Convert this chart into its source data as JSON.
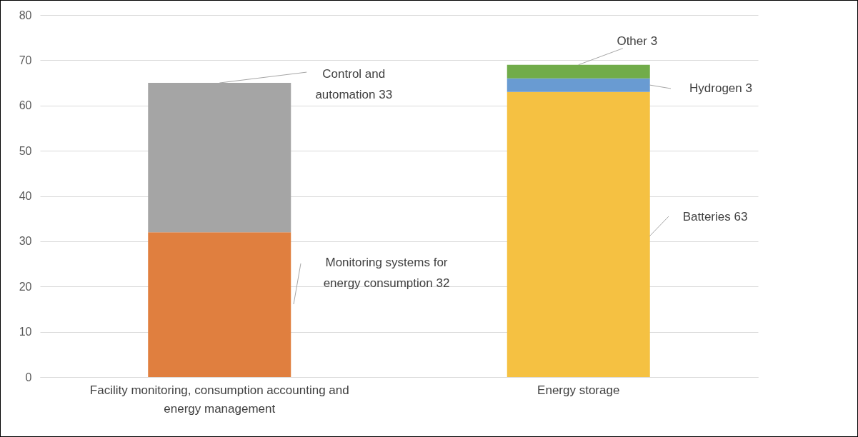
{
  "chart_data": {
    "type": "bar",
    "stacked": true,
    "categories": [
      "Facility monitoring, consumption accounting and energy management",
      "Energy storage"
    ],
    "series": [
      {
        "color": "#e07f3f",
        "values": [
          32,
          null
        ]
      },
      {
        "color": "#a5a5a5",
        "values": [
          33,
          null
        ]
      },
      {
        "color": "#f5c142",
        "values": [
          null,
          63
        ]
      },
      {
        "color": "#699bd2",
        "values": [
          null,
          3
        ]
      },
      {
        "color": "#71ac4a",
        "values": [
          null,
          3
        ]
      }
    ],
    "annotations": [
      "Monitoring systems for energy consumption 32",
      {
        "text": "Control and automation 33",
        "x": "Facility monitoring, consumption accounting and energy management",
        "y": 65
      },
      "Batteries 63",
      "Hydrogen 3",
      {
        "text": "Other 3",
        "x": "Energy storage",
        "y": 69
      }
    ],
    "ylim": [
      0,
      80
    ],
    "yticks": [
      0,
      10,
      20,
      30,
      40,
      50,
      60,
      70,
      80
    ],
    "grid": "y",
    "legend": false
  }
}
